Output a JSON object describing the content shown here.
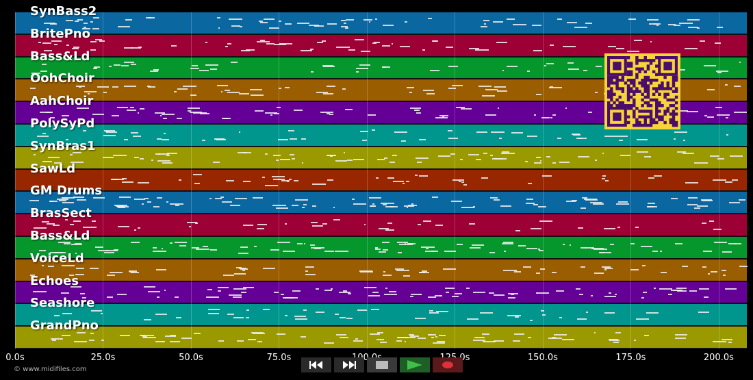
{
  "tracks": [
    {
      "name": "SynBass2",
      "color": "#0a67a0"
    },
    {
      "name": "BritePno",
      "color": "#9c0034"
    },
    {
      "name": "Bass&Ld",
      "color": "#05962c"
    },
    {
      "name": "OohChoir",
      "color": "#9a5d00"
    },
    {
      "name": "AahChoir",
      "color": "#640096"
    },
    {
      "name": "PolySyPd",
      "color": "#00968e"
    },
    {
      "name": "SynBras1",
      "color": "#9a9a00"
    },
    {
      "name": "SawLd",
      "color": "#982700"
    },
    {
      "name": "GM Drums",
      "color": "#0a67a0"
    },
    {
      "name": "BrasSect",
      "color": "#9c0034"
    },
    {
      "name": "Bass&Ld",
      "color": "#05962c"
    },
    {
      "name": "VoiceLd",
      "color": "#9a5d00"
    },
    {
      "name": "Echoes",
      "color": "#640096"
    },
    {
      "name": "Seashore",
      "color": "#00968e"
    },
    {
      "name": "GrandPno",
      "color": "#9a9a00"
    }
  ],
  "timeline": {
    "max_seconds": 208,
    "ticks": [
      "0.0s",
      "25.0s",
      "50.0s",
      "75.0s",
      "100.0s",
      "125.0s",
      "150.0s",
      "175.0s",
      "200.0s"
    ],
    "tick_seconds": [
      0,
      25,
      50,
      75,
      100,
      125,
      150,
      175,
      200
    ]
  },
  "credit": "© www.midifiles.com",
  "transport": {
    "rewind": "rewind-icon",
    "fast_forward": "fast-forward-icon",
    "stop": "stop-icon",
    "play": "play-icon",
    "record": "record-icon"
  },
  "colors": {
    "play_green": "#2e9e3a",
    "record_red": "#c0212b",
    "qr_yellow": "#f7d437",
    "qr_dark": "#4a0d6b"
  }
}
